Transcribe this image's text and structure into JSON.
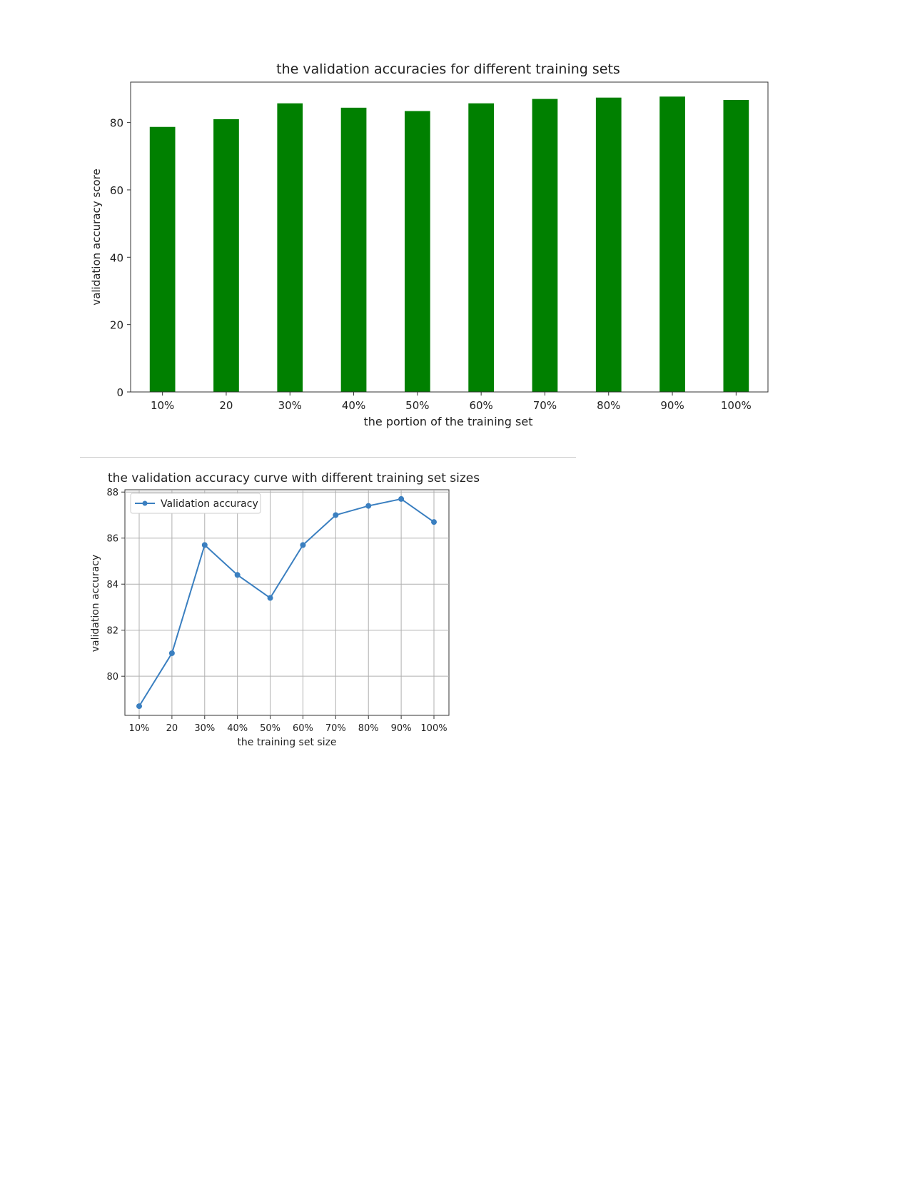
{
  "chart_data": [
    {
      "type": "bar",
      "title": "the validation accuracies for different training sets",
      "xlabel": "the portion of the training set",
      "ylabel": "validation accuracy score",
      "categories": [
        "10%",
        "20",
        "30%",
        "40%",
        "50%",
        "60%",
        "70%",
        "80%",
        "90%",
        "100%"
      ],
      "values": [
        78.7,
        81.0,
        85.7,
        84.4,
        83.4,
        85.7,
        87.0,
        87.4,
        87.7,
        86.7
      ],
      "yticks": [
        0,
        20,
        40,
        60,
        80
      ],
      "ylim": [
        0,
        92
      ],
      "grid": false,
      "legend": "none",
      "bar_color": "#008000"
    },
    {
      "type": "line",
      "title": "the validation accuracy curve with different training set sizes",
      "xlabel": "the training set size",
      "ylabel": "validation accuracy",
      "categories": [
        "10%",
        "20",
        "30%",
        "40%",
        "50%",
        "60%",
        "70%",
        "80%",
        "90%",
        "100%"
      ],
      "series": [
        {
          "name": "Validation accuracy",
          "values": [
            78.7,
            81.0,
            85.7,
            84.4,
            83.4,
            85.7,
            87.0,
            87.4,
            87.7,
            86.7
          ],
          "color": "#3a7fc0"
        }
      ],
      "yticks": [
        80,
        82,
        84,
        86,
        88
      ],
      "ylim": [
        78.3,
        88.1
      ],
      "grid": true,
      "legend": "upper-left"
    }
  ]
}
